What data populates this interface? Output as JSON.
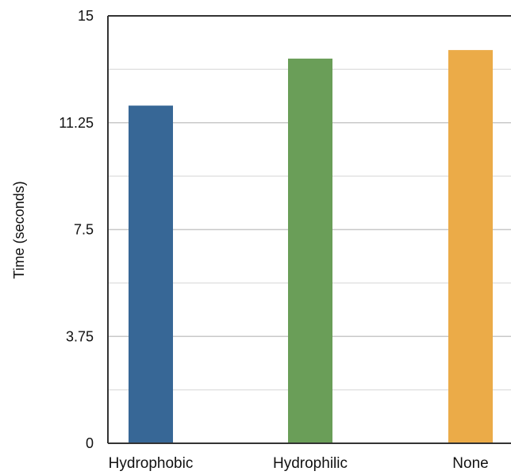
{
  "chart_data": {
    "type": "bar",
    "title": "",
    "xlabel": "",
    "ylabel": "Time (seconds)",
    "categories": [
      "Hydrophobic",
      "Hydrophilic",
      "None"
    ],
    "values": [
      11.85,
      13.5,
      13.8
    ],
    "colors": [
      "#376796",
      "#6a9e58",
      "#ebab48"
    ],
    "ylim": [
      0,
      15
    ],
    "yticks": [
      0,
      3.75,
      7.5,
      11.25,
      15
    ],
    "ytick_labels": [
      "0",
      "3.75",
      "7.5",
      "11.25",
      "15"
    ],
    "grid": true,
    "legend": "none"
  }
}
